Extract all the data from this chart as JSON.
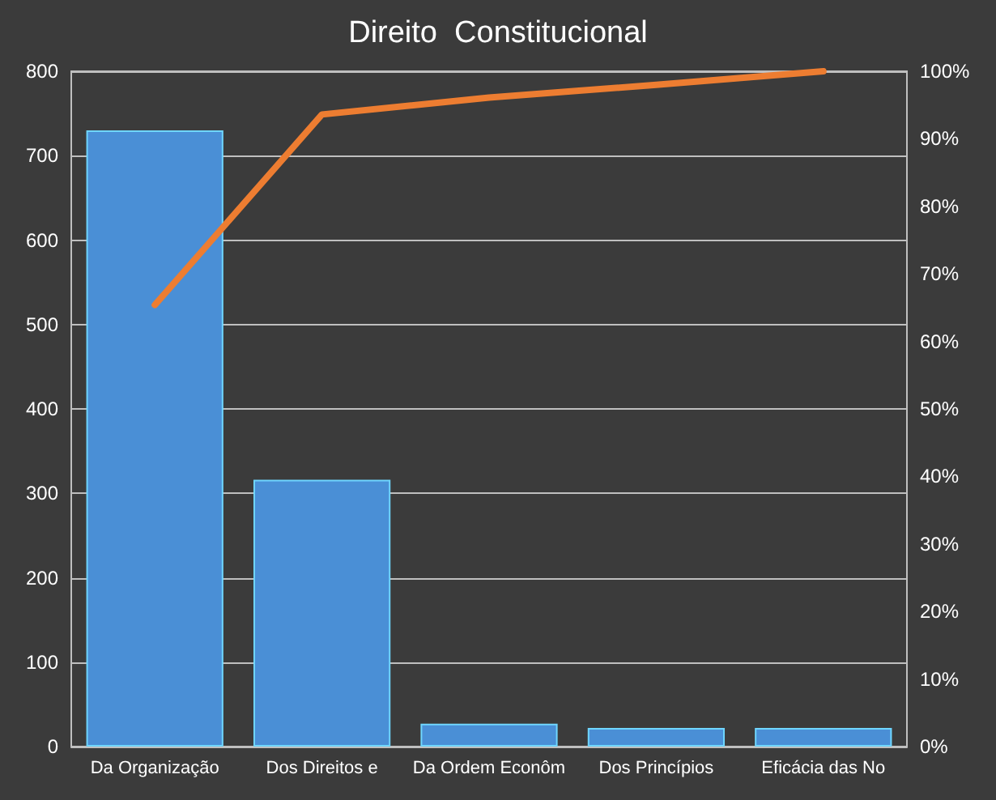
{
  "chart_data": {
    "type": "bar",
    "title": "Direito  Constitucional",
    "categories": [
      "Da Organização",
      "Dos Direitos e",
      "Da Ordem Econôm",
      "Dos Princípios",
      "Eficácia das No"
    ],
    "series": [
      {
        "color": "#4a8fd6",
        "values": [
          730,
          316,
          27,
          22,
          22
        ]
      },
      {
        "type": "line",
        "axis": "y2",
        "color": "#ed7d31",
        "values": [
          65.4,
          93.6,
          96.1,
          98.0,
          100
        ]
      }
    ],
    "ylim": [
      0,
      800
    ],
    "yticks": [
      0,
      100,
      200,
      300,
      400,
      500,
      600,
      700,
      800
    ],
    "y2lim": [
      0,
      100
    ],
    "y2ticks": [
      {
        "value": 0,
        "label": "0%"
      },
      {
        "value": 10,
        "label": "10%"
      },
      {
        "value": 20,
        "label": "20%"
      },
      {
        "value": 30,
        "label": "30%"
      },
      {
        "value": 40,
        "label": "40%"
      },
      {
        "value": 50,
        "label": "50%"
      },
      {
        "value": 60,
        "label": "60%"
      },
      {
        "value": 70,
        "label": "70%"
      },
      {
        "value": 80,
        "label": "80%"
      },
      {
        "value": 90,
        "label": "90%"
      },
      {
        "value": 100,
        "label": "100%"
      }
    ],
    "grid": "y",
    "marker": "none",
    "line_style": "solid"
  }
}
